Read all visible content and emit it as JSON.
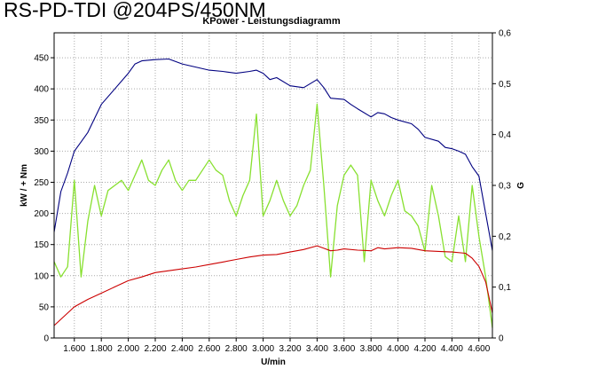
{
  "heading": "RS-PD-TDI @204PS/450NM",
  "chart_data": {
    "type": "line",
    "title": "KPower - Leistungsdiagramm",
    "xlabel": "U/min",
    "ylabel": "kW / + Nm",
    "y2label": "G",
    "xlim": [
      1450,
      4700
    ],
    "ylim": [
      0,
      490
    ],
    "y2lim": [
      0,
      0.6
    ],
    "grid": true,
    "x_ticks": [
      1600,
      1800,
      2000,
      2200,
      2400,
      2600,
      2800,
      3000,
      3200,
      3400,
      3600,
      3800,
      4000,
      4200,
      4400,
      4600
    ],
    "x_tick_labels": [
      "1.600",
      "1.800",
      "2.000",
      "2.200",
      "2.400",
      "2.600",
      "2.800",
      "3.000",
      "3.200",
      "3.400",
      "3.600",
      "3.800",
      "4.000",
      "4.200",
      "4.400",
      "4.600"
    ],
    "y_ticks": [
      0,
      50,
      100,
      150,
      200,
      250,
      300,
      350,
      400,
      450
    ],
    "y_tick_labels": [
      "0",
      "50",
      "100",
      "150",
      "200",
      "250",
      "300",
      "350",
      "400",
      "450"
    ],
    "y2_ticks": [
      0,
      0.1,
      0.2,
      0.3,
      0.4,
      0.5,
      0.6
    ],
    "y2_tick_labels": [
      "0",
      "0,1",
      "0,2",
      "0,3",
      "0,4",
      "0,5",
      "0,6"
    ],
    "colors": {
      "torque": "#000080",
      "power": "#cc0000",
      "g": "#88e030",
      "grid": "#aaaaaa",
      "axis": "#000000"
    },
    "series": [
      {
        "key": "torque",
        "axis": "left",
        "x": [
          1450,
          1500,
          1550,
          1600,
          1650,
          1700,
          1800,
          1900,
          2000,
          2050,
          2100,
          2200,
          2300,
          2400,
          2500,
          2600,
          2700,
          2800,
          2900,
          2950,
          3000,
          3050,
          3100,
          3200,
          3300,
          3400,
          3450,
          3500,
          3600,
          3650,
          3700,
          3800,
          3850,
          3900,
          3950,
          4000,
          4100,
          4150,
          4200,
          4300,
          4350,
          4400,
          4450,
          4500,
          4550,
          4600,
          4650,
          4700
        ],
        "y": [
          170,
          235,
          265,
          300,
          315,
          330,
          375,
          400,
          425,
          440,
          445,
          447,
          448,
          440,
          435,
          430,
          428,
          425,
          428,
          430,
          425,
          415,
          418,
          405,
          402,
          415,
          402,
          385,
          383,
          375,
          368,
          355,
          362,
          360,
          354,
          350,
          344,
          335,
          322,
          316,
          306,
          304,
          300,
          295,
          275,
          260,
          200,
          140
        ]
      },
      {
        "key": "power",
        "axis": "left",
        "x": [
          1450,
          1600,
          1700,
          1800,
          1900,
          2000,
          2100,
          2200,
          2300,
          2400,
          2500,
          2600,
          2700,
          2800,
          2900,
          3000,
          3100,
          3200,
          3300,
          3400,
          3450,
          3500,
          3550,
          3600,
          3700,
          3800,
          3850,
          3900,
          4000,
          4100,
          4200,
          4300,
          4400,
          4500,
          4550,
          4600,
          4650,
          4700
        ],
        "y": [
          20,
          50,
          62,
          72,
          82,
          92,
          98,
          105,
          108,
          111,
          114,
          118,
          122,
          126,
          130,
          133,
          134,
          138,
          142,
          148,
          144,
          140,
          141,
          143,
          141,
          140,
          145,
          143,
          145,
          144,
          140,
          139,
          138,
          136,
          128,
          115,
          90,
          40
        ]
      },
      {
        "key": "g",
        "axis": "right",
        "x": [
          1450,
          1500,
          1550,
          1600,
          1650,
          1700,
          1750,
          1800,
          1850,
          1900,
          1950,
          2000,
          2050,
          2100,
          2150,
          2200,
          2250,
          2300,
          2350,
          2400,
          2450,
          2500,
          2550,
          2600,
          2650,
          2700,
          2750,
          2800,
          2850,
          2900,
          2950,
          3000,
          3050,
          3100,
          3150,
          3200,
          3250,
          3300,
          3350,
          3400,
          3450,
          3500,
          3550,
          3600,
          3650,
          3700,
          3750,
          3800,
          3850,
          3900,
          3950,
          4000,
          4050,
          4100,
          4150,
          4200,
          4250,
          4300,
          4350,
          4400,
          4450,
          4500,
          4550,
          4600,
          4650,
          4700
        ],
        "y": [
          0.15,
          0.12,
          0.14,
          0.31,
          0.12,
          0.23,
          0.3,
          0.24,
          0.29,
          0.3,
          0.31,
          0.29,
          0.32,
          0.35,
          0.31,
          0.3,
          0.33,
          0.35,
          0.31,
          0.29,
          0.31,
          0.31,
          0.33,
          0.35,
          0.33,
          0.32,
          0.27,
          0.24,
          0.28,
          0.31,
          0.44,
          0.24,
          0.27,
          0.31,
          0.27,
          0.24,
          0.26,
          0.3,
          0.33,
          0.46,
          0.3,
          0.12,
          0.26,
          0.32,
          0.34,
          0.32,
          0.15,
          0.31,
          0.27,
          0.24,
          0.28,
          0.31,
          0.25,
          0.24,
          0.22,
          0.17,
          0.3,
          0.24,
          0.16,
          0.15,
          0.24,
          0.15,
          0.3,
          0.2,
          0.12,
          0.02
        ]
      }
    ]
  }
}
